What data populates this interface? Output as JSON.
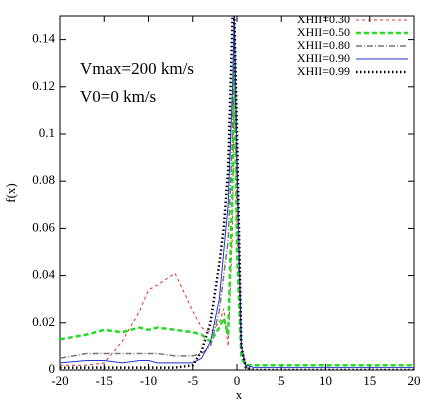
{
  "chart_data": {
    "type": "line",
    "xlabel": "x",
    "ylabel": "f(x)",
    "annotations": [
      "Vmax=200 km/s",
      "V0=0 km/s"
    ],
    "xlim": [
      -20,
      20
    ],
    "xticks": [
      -20,
      -15,
      -10,
      -5,
      0,
      5,
      10,
      15,
      20
    ],
    "ylim": [
      0,
      0.15
    ],
    "yticks": [
      0,
      0.02,
      0.04,
      0.06,
      0.08,
      0.1,
      0.12,
      0.14
    ],
    "legend": "upper right",
    "x": [
      -20,
      -17,
      -15,
      -13,
      -11,
      -10,
      -9,
      -7,
      -5,
      -4,
      -3,
      -2,
      -1.5,
      -1,
      -0.5,
      -0.3,
      0,
      0.5,
      1,
      2,
      5,
      10,
      15,
      20
    ],
    "series": [
      {
        "name": "XHII=0.30",
        "color": "#e03030",
        "dash": "3,3",
        "width": 1,
        "values": [
          0.002,
          0.002,
          0.003,
          0.012,
          0.025,
          0.034,
          0.036,
          0.041,
          0.025,
          0.018,
          0.016,
          0.02,
          0.026,
          0.01,
          0.06,
          0.13,
          0.06,
          0.01,
          0.001,
          0,
          0,
          0,
          0,
          0
        ]
      },
      {
        "name": "XHII=0.50",
        "color": "#22dd22",
        "dash": "5,3",
        "width": 2.5,
        "values": [
          0.013,
          0.015,
          0.017,
          0.016,
          0.018,
          0.017,
          0.018,
          0.017,
          0.016,
          0.015,
          0.012,
          0.018,
          0.022,
          0.015,
          0.08,
          0.13,
          0.05,
          0.005,
          0.002,
          0.002,
          0.002,
          0.002,
          0.002,
          0.002
        ]
      },
      {
        "name": "XHII=0.80",
        "color": "#777777",
        "dash": "6,2,1,2",
        "width": 1.5,
        "values": [
          0.005,
          0.007,
          0.007,
          0.007,
          0.007,
          0.007,
          0.007,
          0.006,
          0.006,
          0.007,
          0.01,
          0.025,
          0.04,
          0.055,
          0.1,
          0.15,
          0.08,
          0.01,
          0.001,
          0,
          0,
          0,
          0,
          0
        ]
      },
      {
        "name": "XHII=0.90",
        "color": "#2233cc",
        "dash": "none",
        "width": 1,
        "values": [
          0.003,
          0.004,
          0.004,
          0.003,
          0.004,
          0.004,
          0.003,
          0.003,
          0.003,
          0.005,
          0.012,
          0.03,
          0.05,
          0.07,
          0.12,
          0.15,
          0.09,
          0.01,
          0.002,
          0.001,
          0.001,
          0.001,
          0.001,
          0.001
        ]
      },
      {
        "name": "XHII=0.99",
        "color": "#000000",
        "dash": "1.5,2.5",
        "width": 2.5,
        "values": [
          0.001,
          0.001,
          0.001,
          0.001,
          0.001,
          0.001,
          0.001,
          0.001,
          0.002,
          0.008,
          0.02,
          0.045,
          0.06,
          0.085,
          0.15,
          0.15,
          0.1,
          0.01,
          0.001,
          0,
          0,
          0,
          0,
          0
        ]
      }
    ]
  }
}
